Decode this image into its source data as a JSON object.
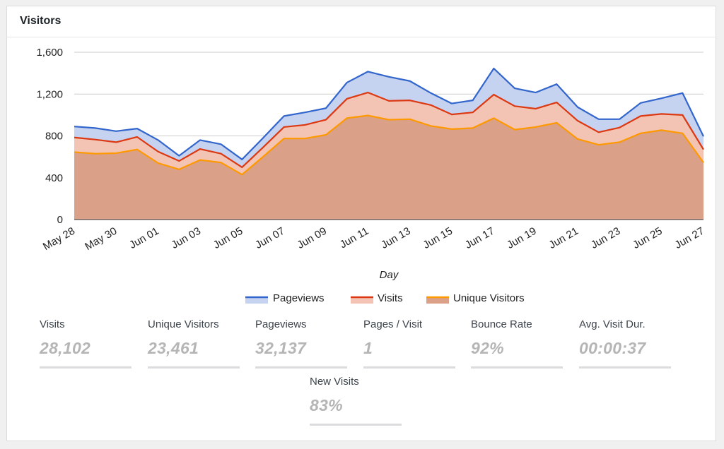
{
  "widget": {
    "title": "Visitors"
  },
  "colors": {
    "pageviews": "#3366cc",
    "visits": "#dc3912",
    "unique": "#ff9900"
  },
  "chart_data": {
    "type": "area",
    "title": "",
    "xlabel": "Day",
    "ylabel": "",
    "ylim": [
      0,
      1600
    ],
    "yticks": [
      0,
      400,
      800,
      1200,
      1600
    ],
    "ytick_labels": [
      "0",
      "400",
      "800",
      "1,200",
      "1,600"
    ],
    "grid": true,
    "legend_position": "bottom",
    "x": [
      "May 28",
      "May 29",
      "May 30",
      "May 31",
      "Jun 01",
      "Jun 02",
      "Jun 03",
      "Jun 04",
      "Jun 05",
      "Jun 06",
      "Jun 07",
      "Jun 08",
      "Jun 09",
      "Jun 10",
      "Jun 11",
      "Jun 12",
      "Jun 13",
      "Jun 14",
      "Jun 15",
      "Jun 16",
      "Jun 17",
      "Jun 18",
      "Jun 19",
      "Jun 20",
      "Jun 21",
      "Jun 22",
      "Jun 23",
      "Jun 24",
      "Jun 25",
      "Jun 26",
      "Jun 27"
    ],
    "xtick_labels": [
      "May 28",
      "May 30",
      "Jun 01",
      "Jun 03",
      "Jun 05",
      "Jun 07",
      "Jun 09",
      "Jun 11",
      "Jun 13",
      "Jun 15",
      "Jun 17",
      "Jun 19",
      "Jun 21",
      "Jun 23",
      "Jun 25",
      "Jun 27"
    ],
    "series": [
      {
        "name": "Pageviews",
        "values": [
          890,
          875,
          845,
          870,
          760,
          610,
          760,
          720,
          575,
          780,
          990,
          1025,
          1065,
          1310,
          1415,
          1365,
          1325,
          1210,
          1110,
          1140,
          1445,
          1255,
          1215,
          1295,
          1075,
          960,
          960,
          1115,
          1160,
          1210,
          795
        ]
      },
      {
        "name": "Visits",
        "values": [
          785,
          765,
          740,
          790,
          650,
          560,
          675,
          630,
          500,
          690,
          885,
          905,
          955,
          1155,
          1215,
          1135,
          1140,
          1095,
          1005,
          1025,
          1195,
          1085,
          1060,
          1120,
          945,
          835,
          880,
          990,
          1010,
          1000,
          670
        ]
      },
      {
        "name": "Unique Visitors",
        "values": [
          645,
          630,
          635,
          670,
          540,
          480,
          570,
          545,
          430,
          600,
          775,
          775,
          810,
          970,
          995,
          955,
          960,
          895,
          865,
          875,
          970,
          860,
          885,
          925,
          770,
          715,
          740,
          825,
          855,
          825,
          545
        ]
      }
    ]
  },
  "stats": [
    {
      "label": "Visits",
      "value": "28,102"
    },
    {
      "label": "Unique Visitors",
      "value": "23,461"
    },
    {
      "label": "Pageviews",
      "value": "32,137"
    },
    {
      "label": "Pages / Visit",
      "value": "1"
    },
    {
      "label": "Bounce Rate",
      "value": "92%"
    },
    {
      "label": "Avg. Visit Dur.",
      "value": "00:00:37"
    },
    {
      "label": "New Visits",
      "value": "83%"
    }
  ]
}
